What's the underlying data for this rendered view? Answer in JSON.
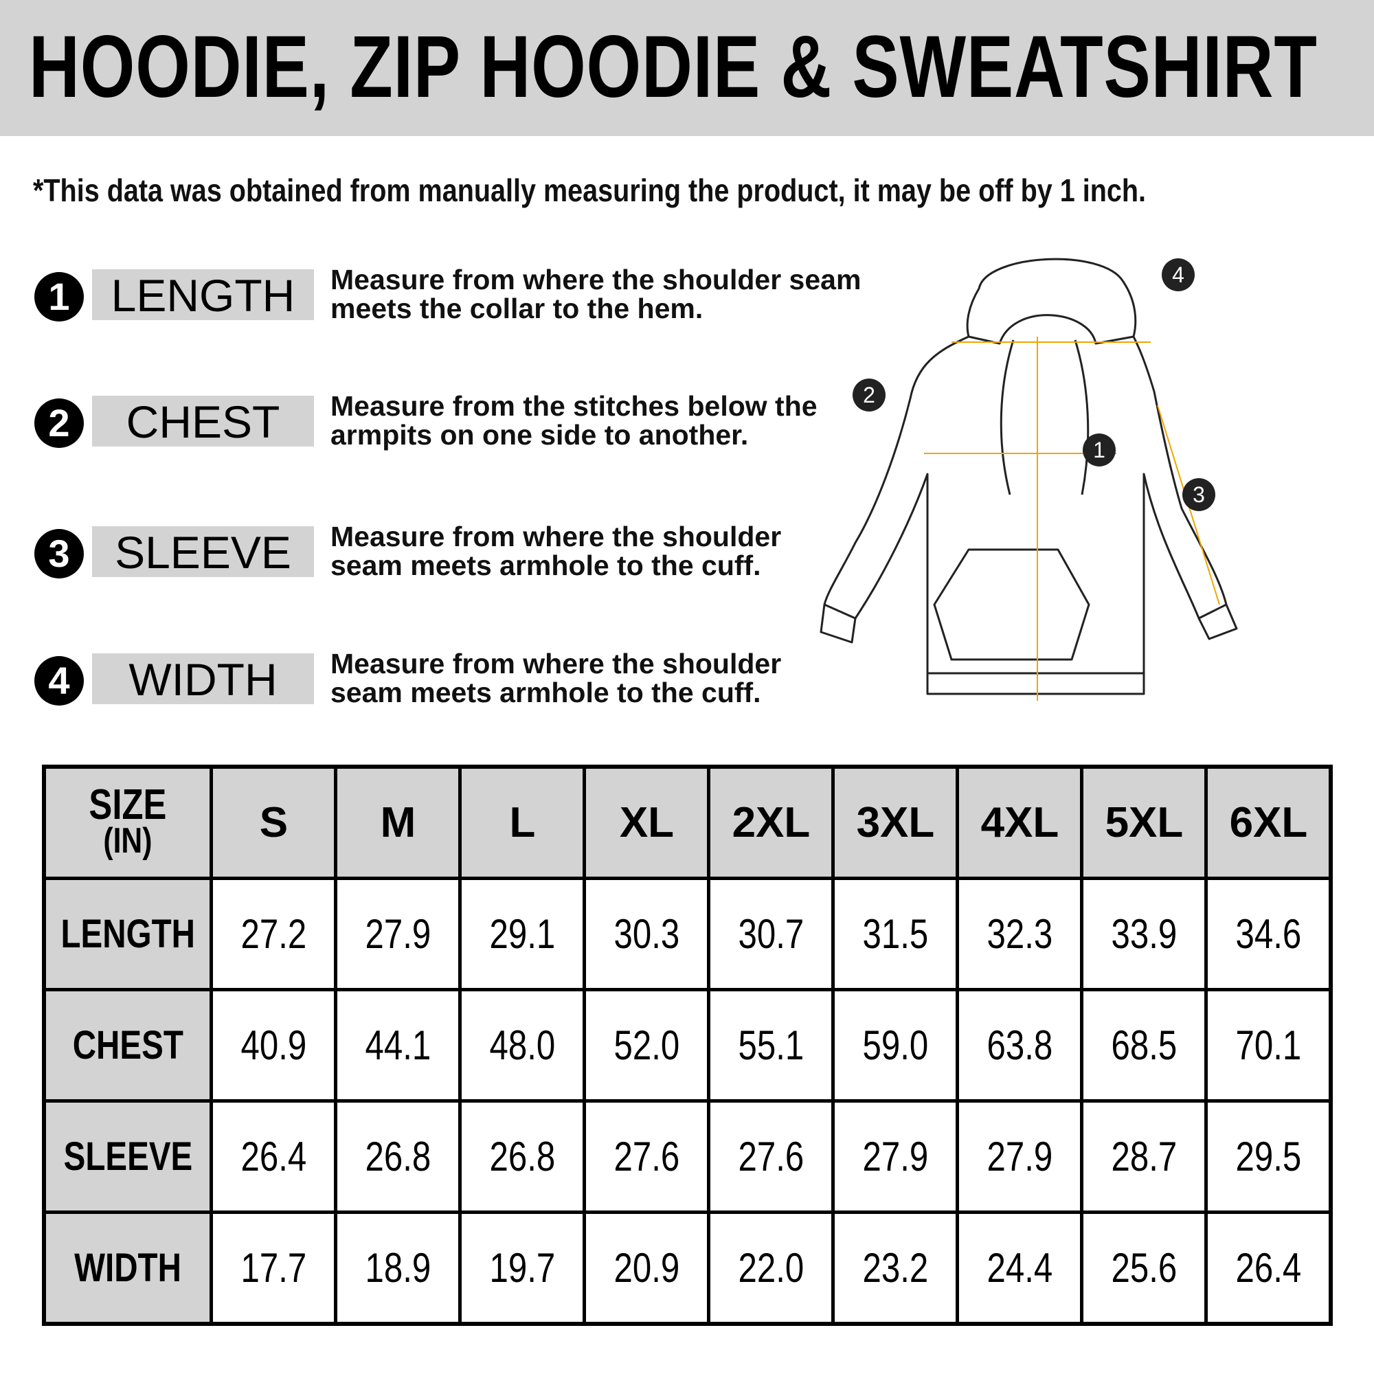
{
  "title": "HOODIE, ZIP HOODIE & SWEATSHIRT",
  "note": "*This data was obtained from manually measuring the product, it may be off by 1 inch.",
  "measurements": [
    {
      "number": "1",
      "label": "LENGTH",
      "line1": "Measure from where the shoulder seam",
      "line2": "meets the collar to the hem."
    },
    {
      "number": "2",
      "label": "CHEST",
      "line1": "Measure from the stitches below the",
      "line2": "armpits on one side to another."
    },
    {
      "number": "3",
      "label": "SLEEVE",
      "line1": "Measure from where the shoulder",
      "line2": "seam meets armhole to the cuff."
    },
    {
      "number": "4",
      "label": "WIDTH",
      "line1": "Measure from where the shoulder",
      "line2": "seam meets armhole to the cuff."
    }
  ],
  "diagram": {
    "markers": [
      "1",
      "2",
      "3",
      "4"
    ],
    "guide_color": "#f0a500"
  },
  "table": {
    "corner_line1": "SIZE",
    "corner_line2": "(IN)",
    "sizes": [
      "S",
      "M",
      "L",
      "XL",
      "2XL",
      "3XL",
      "4XL",
      "5XL",
      "6XL"
    ],
    "rows": [
      {
        "label": "LENGTH",
        "values": [
          "27.2",
          "27.9",
          "29.1",
          "30.3",
          "30.7",
          "31.5",
          "32.3",
          "33.9",
          "34.6"
        ]
      },
      {
        "label": "CHEST",
        "values": [
          "40.9",
          "44.1",
          "48.0",
          "52.0",
          "55.1",
          "59.0",
          "63.8",
          "68.5",
          "70.1"
        ]
      },
      {
        "label": "SLEEVE",
        "values": [
          "26.4",
          "26.8",
          "26.8",
          "27.6",
          "27.6",
          "27.9",
          "27.9",
          "28.7",
          "29.5"
        ]
      },
      {
        "label": "WIDTH",
        "values": [
          "17.7",
          "18.9",
          "19.7",
          "20.9",
          "22.0",
          "23.2",
          "24.4",
          "25.6",
          "26.4"
        ]
      }
    ]
  }
}
